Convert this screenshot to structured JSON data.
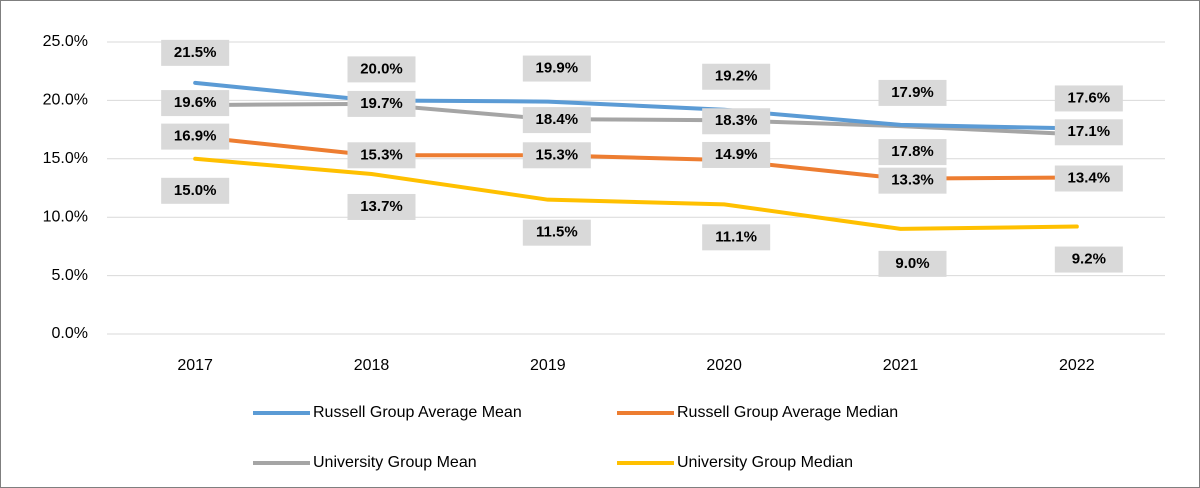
{
  "chart_data": {
    "type": "line",
    "categories": [
      "2017",
      "2018",
      "2019",
      "2020",
      "2021",
      "2022"
    ],
    "series": [
      {
        "name": "Russell Group Average Mean",
        "color": "#5b9bd5",
        "values": [
          21.5,
          20.0,
          19.9,
          19.2,
          17.9,
          17.6
        ],
        "value_labels": [
          "21.5%",
          "20.0%",
          "19.9%",
          "19.2%",
          "17.9%",
          "17.6%"
        ]
      },
      {
        "name": "Russell Group Average Median",
        "color": "#ed7d31",
        "values": [
          16.9,
          15.3,
          15.3,
          14.9,
          13.3,
          13.4
        ],
        "value_labels": [
          "16.9%",
          "15.3%",
          "15.3%",
          "14.9%",
          "13.3%",
          "13.4%"
        ]
      },
      {
        "name": "University Group Mean",
        "color": "#a5a5a5",
        "values": [
          19.6,
          19.7,
          18.4,
          18.3,
          17.8,
          17.1
        ],
        "value_labels": [
          "19.6%",
          "19.7%",
          "18.4%",
          "18.3%",
          "17.8%",
          "17.1%"
        ]
      },
      {
        "name": "University Group Median",
        "color": "#ffc000",
        "values": [
          15.0,
          13.7,
          11.5,
          11.1,
          9.0,
          9.2
        ],
        "value_labels": [
          "15.0%",
          "13.7%",
          "11.5%",
          "11.1%",
          "9.0%",
          "9.2%"
        ]
      }
    ],
    "ylim": [
      0,
      25
    ],
    "yticks": [
      {
        "value": 0,
        "label": "0.0%"
      },
      {
        "value": 5,
        "label": "5.0%"
      },
      {
        "value": 10,
        "label": "10.0%"
      },
      {
        "value": 15,
        "label": "15.0%"
      },
      {
        "value": 20,
        "label": "20.0%"
      },
      {
        "value": 25,
        "label": "25.0%"
      }
    ],
    "grid": true,
    "legend": "bottom"
  }
}
